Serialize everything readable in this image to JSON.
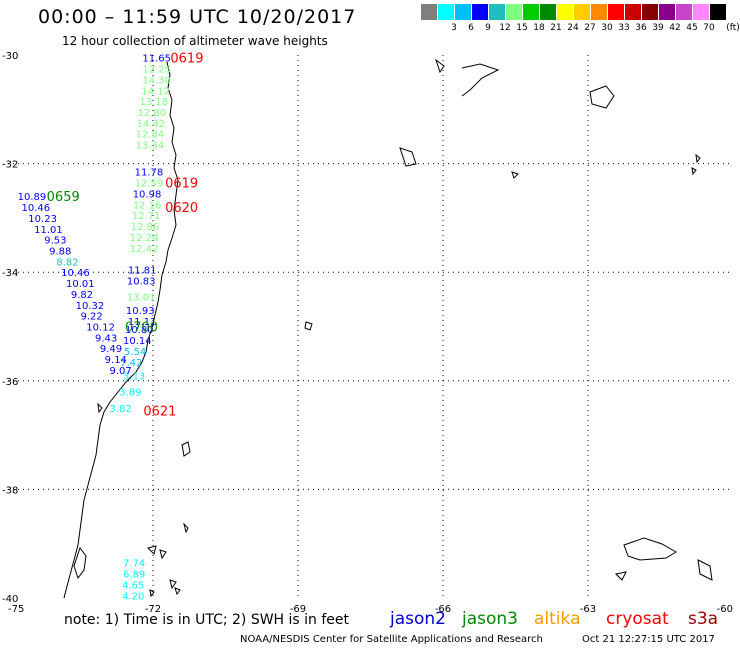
{
  "title": "00:00 – 11:59 UTC 10/20/2017",
  "subtitle": "12 hour collection of altimeter wave heights",
  "color_scale": {
    "unit": "(ft)",
    "swatches": [
      {
        "label": "",
        "color": "#7f7f7f"
      },
      {
        "label": "3",
        "color": "#00ffff"
      },
      {
        "label": "6",
        "color": "#00bfff"
      },
      {
        "label": "9",
        "color": "#0000ff"
      },
      {
        "label": "12",
        "color": "#1fbfbf"
      },
      {
        "label": "15",
        "color": "#7fff7f"
      },
      {
        "label": "18",
        "color": "#00cc00"
      },
      {
        "label": "21",
        "color": "#008800"
      },
      {
        "label": "24",
        "color": "#ffff00"
      },
      {
        "label": "27",
        "color": "#ffcc00"
      },
      {
        "label": "30",
        "color": "#ff8800"
      },
      {
        "label": "33",
        "color": "#ff0000"
      },
      {
        "label": "36",
        "color": "#cc0000"
      },
      {
        "label": "39",
        "color": "#880000"
      },
      {
        "label": "42",
        "color": "#8b008b"
      },
      {
        "label": "45",
        "color": "#cc44cc"
      },
      {
        "label": "70",
        "color": "#ff88ff"
      },
      {
        "label": "",
        "color": "#000000"
      }
    ]
  },
  "axes": {
    "lat_labels": [
      "-30",
      "-32",
      "-34",
      "-36",
      "-38",
      "-40"
    ],
    "lon_labels": [
      "-75",
      "-72",
      "-69",
      "-66",
      "-63",
      "-60"
    ]
  },
  "track_times": [
    {
      "text": "0619",
      "lon": -71.64,
      "lat": -30.05,
      "color": "#ff0000"
    },
    {
      "text": "0619",
      "lon": -71.75,
      "lat": -32.35,
      "color": "#ff0000"
    },
    {
      "text": "0620",
      "lon": -71.75,
      "lat": -32.8,
      "color": "#ff0000"
    },
    {
      "text": "0659",
      "lon": -74.2,
      "lat": -32.6,
      "color": "#008800"
    },
    {
      "text": "0700",
      "lon": -72.58,
      "lat": -35.0,
      "color": "#008800"
    },
    {
      "text": "0621",
      "lon": -72.2,
      "lat": -36.55,
      "color": "#ff0000"
    }
  ],
  "track_values": [
    {
      "text": "11.65",
      "lon": -72.22,
      "lat": -30.05,
      "color": "#0000ff"
    },
    {
      "text": "12.25",
      "lon": -72.22,
      "lat": -30.25,
      "color": "#7fff7f"
    },
    {
      "text": "14.30",
      "lon": -72.22,
      "lat": -30.45,
      "color": "#7fff7f"
    },
    {
      "text": "14.12",
      "lon": -72.24,
      "lat": -30.65,
      "color": "#7fff7f"
    },
    {
      "text": "13.18",
      "lon": -72.28,
      "lat": -30.85,
      "color": "#7fff7f"
    },
    {
      "text": "12.80",
      "lon": -72.32,
      "lat": -31.05,
      "color": "#7fff7f"
    },
    {
      "text": "14.42",
      "lon": -72.34,
      "lat": -31.25,
      "color": "#7fff7f"
    },
    {
      "text": "12.84",
      "lon": -72.36,
      "lat": -31.45,
      "color": "#7fff7f"
    },
    {
      "text": "13.34",
      "lon": -72.36,
      "lat": -31.65,
      "color": "#7fff7f"
    },
    {
      "text": "11.78",
      "lon": -72.38,
      "lat": -32.15,
      "color": "#0000ff"
    },
    {
      "text": "12.59",
      "lon": -72.38,
      "lat": -32.35,
      "color": "#7fff7f"
    },
    {
      "text": "10.98",
      "lon": -72.42,
      "lat": -32.55,
      "color": "#0000ff"
    },
    {
      "text": "12.16",
      "lon": -72.42,
      "lat": -32.75,
      "color": "#7fff7f"
    },
    {
      "text": "12.71",
      "lon": -72.44,
      "lat": -32.95,
      "color": "#7fff7f"
    },
    {
      "text": "12.86",
      "lon": -72.46,
      "lat": -33.15,
      "color": "#7fff7f"
    },
    {
      "text": "12.24",
      "lon": -72.48,
      "lat": -33.35,
      "color": "#7fff7f"
    },
    {
      "text": "12.42",
      "lon": -72.48,
      "lat": -33.55,
      "color": "#7fff7f"
    },
    {
      "text": "11.81",
      "lon": -72.52,
      "lat": -33.95,
      "color": "#0000ff"
    },
    {
      "text": "10.83",
      "lon": -72.54,
      "lat": -34.15,
      "color": "#0000ff"
    },
    {
      "text": "13.01",
      "lon": -72.54,
      "lat": -34.45,
      "color": "#7fff7f"
    },
    {
      "text": "10.93",
      "lon": -72.56,
      "lat": -34.7,
      "color": "#0000ff"
    },
    {
      "text": "11.11",
      "lon": -72.52,
      "lat": -34.9,
      "color": "#0000ff"
    },
    {
      "text": "10.80",
      "lon": -72.58,
      "lat": -35.05,
      "color": "#0000ff"
    },
    {
      "text": "10.14",
      "lon": -72.62,
      "lat": -35.25,
      "color": "#0000ff"
    },
    {
      "text": "5.54",
      "lon": -72.6,
      "lat": -35.45,
      "color": "#00bfff"
    },
    {
      "text": "7.42",
      "lon": -72.68,
      "lat": -35.65,
      "color": "#00bfff"
    },
    {
      "text": "3.13",
      "lon": -72.62,
      "lat": -35.9,
      "color": "#00ffff"
    },
    {
      "text": "3.89",
      "lon": -72.7,
      "lat": -36.2,
      "color": "#00ffff"
    },
    {
      "text": "3.82",
      "lon": -72.9,
      "lat": -36.5,
      "color": "#00ffff"
    },
    {
      "text": "10.89",
      "lon": -74.8,
      "lat": -32.6,
      "color": "#0000ff"
    },
    {
      "text": "10.46",
      "lon": -74.72,
      "lat": -32.8,
      "color": "#0000ff"
    },
    {
      "text": "10.23",
      "lon": -74.58,
      "lat": -33.0,
      "color": "#0000ff"
    },
    {
      "text": "11.01",
      "lon": -74.46,
      "lat": -33.2,
      "color": "#0000ff"
    },
    {
      "text": "9.53",
      "lon": -74.25,
      "lat": -33.4,
      "color": "#0000ff"
    },
    {
      "text": "9.88",
      "lon": -74.15,
      "lat": -33.6,
      "color": "#0000ff"
    },
    {
      "text": "8.82",
      "lon": -74.0,
      "lat": -33.8,
      "color": "#1fbfbf"
    },
    {
      "text": "10.46",
      "lon": -73.9,
      "lat": -34.0,
      "color": "#0000ff"
    },
    {
      "text": "10.01",
      "lon": -73.8,
      "lat": -34.2,
      "color": "#0000ff"
    },
    {
      "text": "9.82",
      "lon": -73.7,
      "lat": -34.4,
      "color": "#0000ff"
    },
    {
      "text": "10.32",
      "lon": -73.6,
      "lat": -34.6,
      "color": "#0000ff"
    },
    {
      "text": "9.22",
      "lon": -73.5,
      "lat": -34.8,
      "color": "#0000ff"
    },
    {
      "text": "10.12",
      "lon": -73.38,
      "lat": -35.0,
      "color": "#0000ff"
    },
    {
      "text": "9.43",
      "lon": -73.2,
      "lat": -35.2,
      "color": "#0000ff"
    },
    {
      "text": "9.49",
      "lon": -73.1,
      "lat": -35.4,
      "color": "#0000ff"
    },
    {
      "text": "9.14",
      "lon": -73.0,
      "lat": -35.6,
      "color": "#0000ff"
    },
    {
      "text": "9.07",
      "lon": -72.9,
      "lat": -35.8,
      "color": "#0000ff"
    },
    {
      "text": "7.74",
      "lon": -72.62,
      "lat": -39.35,
      "color": "#00ffff"
    },
    {
      "text": "6.89",
      "lon": -72.62,
      "lat": -39.55,
      "color": "#00ffff"
    },
    {
      "text": "4.65",
      "lon": -72.64,
      "lat": -39.75,
      "color": "#00ffff"
    },
    {
      "text": "4.20",
      "lon": -72.64,
      "lat": -39.95,
      "color": "#00ffff"
    }
  ],
  "note": "note:  1) Time is in UTC;  2) SWH is in feet",
  "legend": [
    {
      "label": "jason2",
      "color": "#0000cc"
    },
    {
      "label": "jason3",
      "color": "#008800"
    },
    {
      "label": "altika",
      "color": "#ff9900"
    },
    {
      "label": "cryosat",
      "color": "#ff0000"
    },
    {
      "label": "s3a",
      "color": "#990000"
    }
  ],
  "footer_left": "NOAA/NESDIS Center for Satellite Applications and Research",
  "footer_right": "Oct 21 12:27:15 UTC 2017"
}
